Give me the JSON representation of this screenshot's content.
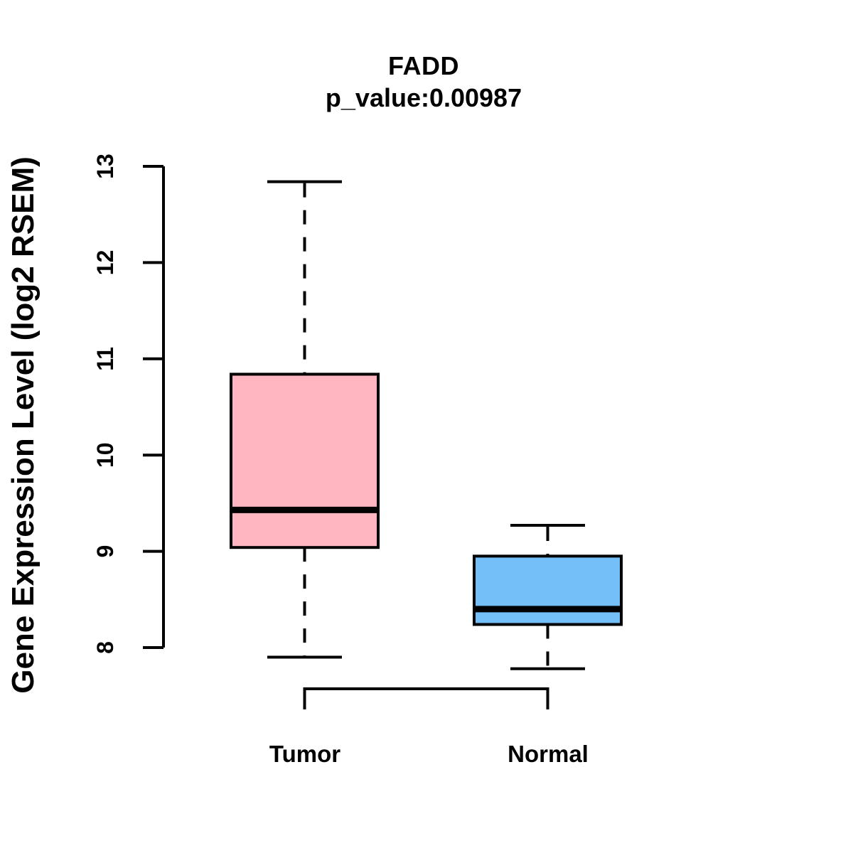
{
  "chart_data": {
    "type": "boxplot",
    "title": "FADD",
    "subtitle": "p_value:0.00987",
    "ylabel": "Gene Expression Level (log2 RSEM)",
    "xlabel": "",
    "categories": [
      "Tumor",
      "Normal"
    ],
    "y_axis": {
      "ticks": [
        8,
        9,
        10,
        11,
        12,
        13
      ],
      "range_drawn": [
        8,
        13
      ]
    },
    "grid": false,
    "legend_position": "none",
    "comparison_bracket": true,
    "series": [
      {
        "name": "Tumor",
        "color": "#FFB6C1",
        "whisker_low": 7.9,
        "q1": 9.04,
        "median": 9.43,
        "q3": 10.84,
        "whisker_high": 12.84
      },
      {
        "name": "Normal",
        "color": "#74BFF8",
        "whisker_low": 7.78,
        "q1": 8.24,
        "median": 8.4,
        "q3": 8.95,
        "whisker_high": 9.27
      }
    ]
  }
}
